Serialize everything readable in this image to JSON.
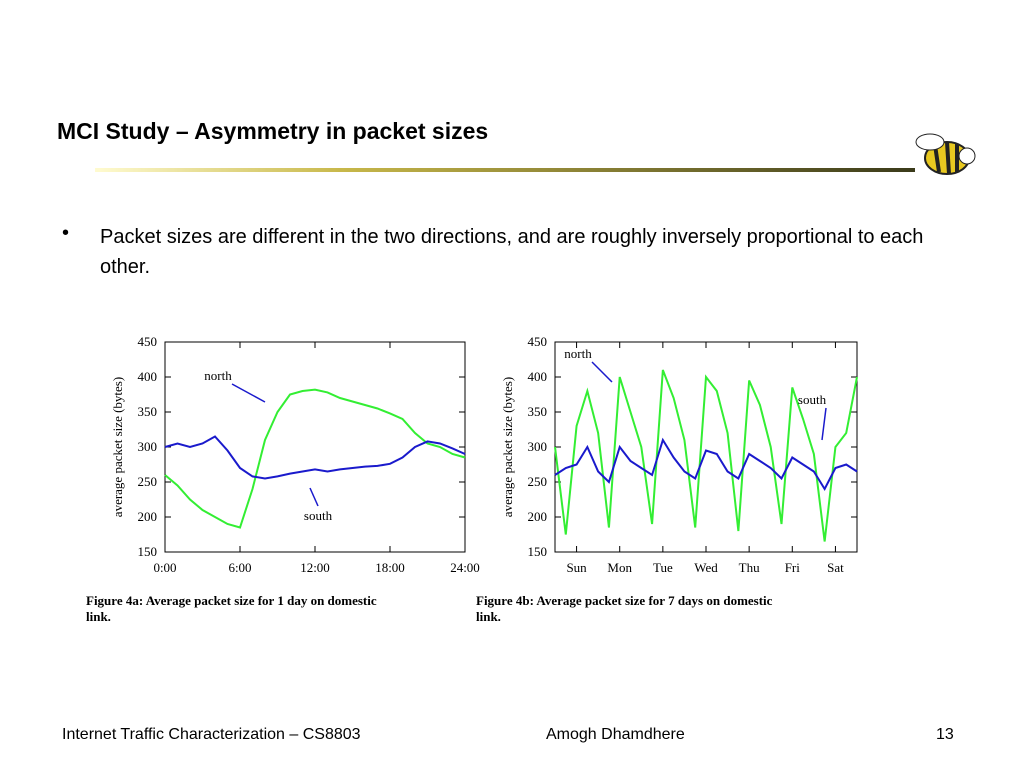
{
  "header": {
    "title": "MCI Study – Asymmetry in packet sizes"
  },
  "bullets": [
    "Packet sizes are different in the two directions, and are roughly inversely proportional to each other."
  ],
  "chart_data": [
    {
      "type": "line",
      "y_label": "average packet size (bytes)",
      "caption": "Figure 4a: Average packet size for 1 day on domestic link.",
      "annotations": [
        "north",
        "south"
      ],
      "xlim": [
        0,
        24
      ],
      "xticks": [
        {
          "value": 0,
          "label": "0:00"
        },
        {
          "value": 6,
          "label": "6:00"
        },
        {
          "value": 12,
          "label": "12:00"
        },
        {
          "value": 18,
          "label": "18:00"
        },
        {
          "value": 24,
          "label": "24:00"
        }
      ],
      "ylim": [
        150,
        450
      ],
      "yticks": [
        150,
        200,
        250,
        300,
        350,
        400,
        450
      ],
      "x": [
        0,
        1,
        2,
        3,
        4,
        5,
        6,
        7,
        8,
        9,
        10,
        11,
        12,
        13,
        14,
        15,
        16,
        17,
        18,
        19,
        20,
        21,
        22,
        23,
        24
      ],
      "series": [
        {
          "name": "north",
          "color": "#33ee33",
          "values": [
            260,
            245,
            225,
            210,
            200,
            190,
            185,
            240,
            310,
            350,
            375,
            380,
            382,
            378,
            370,
            365,
            360,
            355,
            348,
            340,
            320,
            305,
            300,
            290,
            285
          ]
        },
        {
          "name": "south",
          "color": "#1a1acc",
          "values": [
            300,
            305,
            300,
            305,
            315,
            295,
            270,
            258,
            255,
            258,
            262,
            265,
            268,
            265,
            268,
            270,
            272,
            273,
            276,
            285,
            300,
            308,
            305,
            298,
            290
          ]
        }
      ]
    },
    {
      "type": "line",
      "y_label": "average packet size (bytes)",
      "caption": "Figure 4b: Average packet size for 7 days on domestic link.",
      "annotations": [
        "north",
        "south"
      ],
      "xlim": [
        0,
        7
      ],
      "xticks": [
        {
          "value": 0.5,
          "label": "Sun"
        },
        {
          "value": 1.5,
          "label": "Mon"
        },
        {
          "value": 2.5,
          "label": "Tue"
        },
        {
          "value": 3.5,
          "label": "Wed"
        },
        {
          "value": 4.5,
          "label": "Thu"
        },
        {
          "value": 5.5,
          "label": "Fri"
        },
        {
          "value": 6.5,
          "label": "Sat"
        }
      ],
      "ylim": [
        150,
        450
      ],
      "yticks": [
        150,
        200,
        250,
        300,
        350,
        400,
        450
      ],
      "x": [
        0,
        0.25,
        0.5,
        0.75,
        1,
        1.25,
        1.5,
        1.75,
        2,
        2.25,
        2.5,
        2.75,
        3,
        3.25,
        3.5,
        3.75,
        4,
        4.25,
        4.5,
        4.75,
        5,
        5.25,
        5.5,
        5.75,
        6,
        6.25,
        6.5,
        6.75,
        7
      ],
      "series": [
        {
          "name": "north",
          "color": "#33ee33",
          "values": [
            300,
            175,
            330,
            380,
            320,
            185,
            400,
            350,
            300,
            190,
            410,
            370,
            310,
            185,
            400,
            380,
            320,
            180,
            395,
            360,
            300,
            190,
            385,
            340,
            290,
            165,
            300,
            320,
            400
          ]
        },
        {
          "name": "south",
          "color": "#1a1acc",
          "values": [
            260,
            270,
            275,
            300,
            265,
            250,
            300,
            280,
            270,
            260,
            310,
            285,
            265,
            255,
            295,
            290,
            265,
            255,
            290,
            280,
            270,
            255,
            285,
            275,
            265,
            240,
            270,
            275,
            265
          ]
        }
      ]
    }
  ],
  "footer": {
    "left": "Internet Traffic Characterization – CS8803",
    "center": "Amogh Dhamdhere",
    "page": "13"
  }
}
